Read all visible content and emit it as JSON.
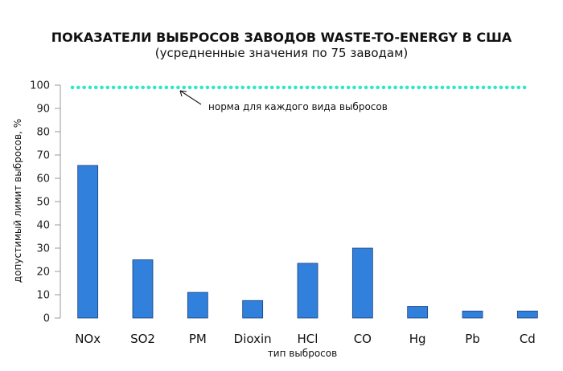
{
  "chart_data": {
    "type": "bar",
    "title": "ПОКАЗАТЕЛИ ВЫБРОСОВ ЗАВОДОВ WASTE-TO-ENERGY В США",
    "subtitle": "(усредненные значения по 75 заводам)",
    "xlabel": "тип выбросов",
    "ylabel": "допустимый лимит выбросов, %",
    "categories": [
      "NOx",
      "SO2",
      "PM",
      "Dioxin",
      "HCl",
      "CO",
      "Hg",
      "Pb",
      "Cd"
    ],
    "values": [
      65.5,
      25,
      11,
      7.5,
      23.5,
      30,
      5,
      3,
      3
    ],
    "ylim": [
      0,
      100
    ],
    "yticks": [
      0,
      10,
      20,
      30,
      40,
      50,
      60,
      70,
      80,
      90,
      100
    ],
    "grid": false,
    "reference_line": {
      "value": 99,
      "label": "норма для каждого вида выбросов",
      "style": "dotted"
    },
    "colors": {
      "bar": "#3080dc",
      "bar_border": "#1e3f7a",
      "reference": "#2ee8c8",
      "axis": "#999999"
    }
  }
}
